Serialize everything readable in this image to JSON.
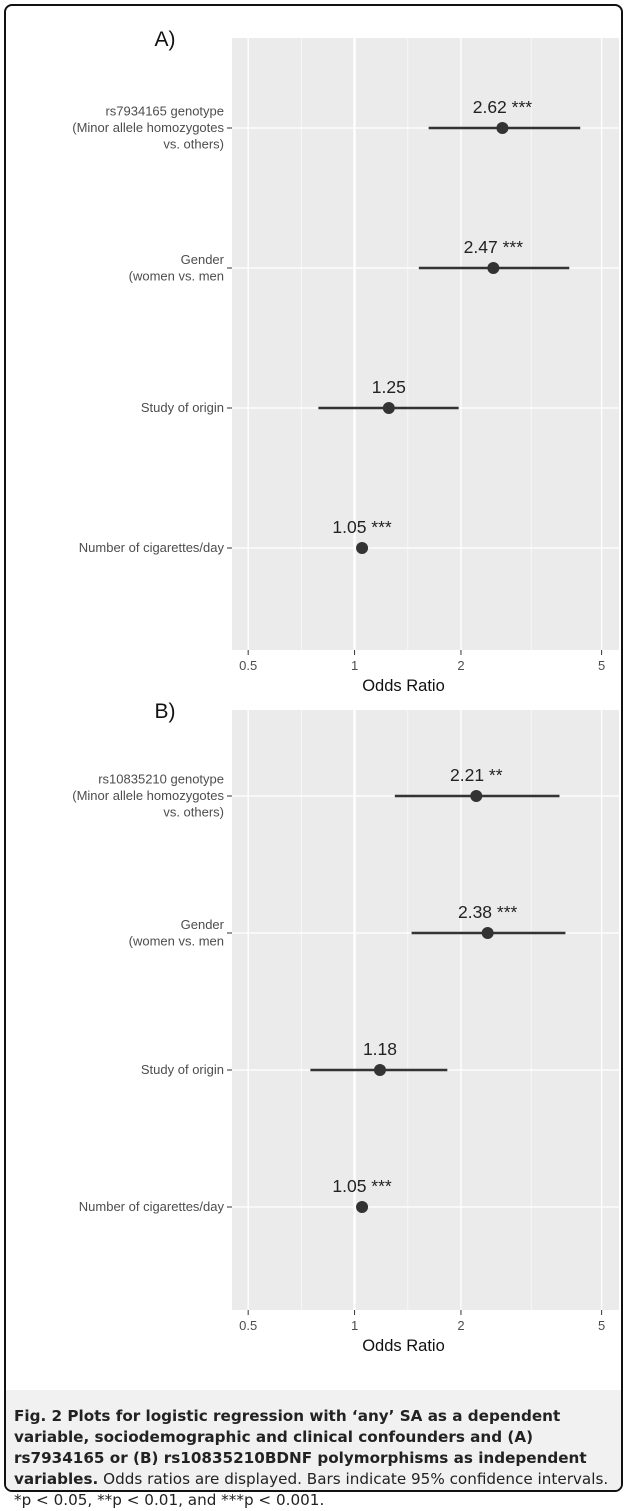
{
  "chart_data": [
    {
      "type": "forest",
      "panel_label": "A)",
      "xlabel": "Odds Ratio",
      "xscale": "log",
      "xlim": [
        0.45,
        5.6
      ],
      "xticks": [
        0.5,
        1,
        2,
        5
      ],
      "xtick_labels": [
        "0.5",
        "1",
        "2",
        "5"
      ],
      "grid": true,
      "rows": [
        {
          "label": [
            "rs7934165 genotype",
            "(Minor allele homozygotes",
            "vs. others)"
          ],
          "or": 2.62,
          "ci": [
            1.62,
            4.35
          ],
          "annotation": "2.62 ***"
        },
        {
          "label": [
            "Gender",
            "(women vs. men"
          ],
          "or": 2.47,
          "ci": [
            1.52,
            4.05
          ],
          "annotation": "2.47 ***"
        },
        {
          "label": [
            "Study of origin"
          ],
          "or": 1.25,
          "ci": [
            0.79,
            1.97
          ],
          "annotation": "1.25"
        },
        {
          "label": [
            "Number of cigarettes/day"
          ],
          "or": 1.05,
          "ci": [
            1.03,
            1.07
          ],
          "annotation": "1.05 ***"
        }
      ]
    },
    {
      "type": "forest",
      "panel_label": "B)",
      "xlabel": "Odds Ratio",
      "xscale": "log",
      "xlim": [
        0.45,
        5.6
      ],
      "xticks": [
        0.5,
        1,
        2,
        5
      ],
      "xtick_labels": [
        "0.5",
        "1",
        "2",
        "5"
      ],
      "grid": true,
      "rows": [
        {
          "label": [
            "rs10835210 genotype",
            "(Minor allele homozygotes",
            "vs. others)"
          ],
          "or": 2.21,
          "ci": [
            1.3,
            3.8
          ],
          "annotation": "2.21 **"
        },
        {
          "label": [
            "Gender",
            "(women vs. men"
          ],
          "or": 2.38,
          "ci": [
            1.45,
            3.95
          ],
          "annotation": "2.38 ***"
        },
        {
          "label": [
            "Study of origin"
          ],
          "or": 1.18,
          "ci": [
            0.75,
            1.83
          ],
          "annotation": "1.18"
        },
        {
          "label": [
            "Number of cigarettes/day"
          ],
          "or": 1.05,
          "ci": [
            1.03,
            1.07
          ],
          "annotation": "1.05 ***"
        }
      ]
    }
  ],
  "caption": {
    "bold": "Fig. 2 Plots for logistic regression with ‘any’ SA as a dependent variable, sociodemographic and clinical confounders and (A) rs7934165 or (B) rs10835210BDNF polymorphisms as independent variables.",
    "text": " Odds ratios are displayed. Bars indicate 95% confidence intervals. *p < 0.05, **p < 0.01, and ***p < 0.001."
  },
  "colors": {
    "panel": "#ebebeb",
    "grid_major": "#ffffff",
    "point": "#333333"
  }
}
